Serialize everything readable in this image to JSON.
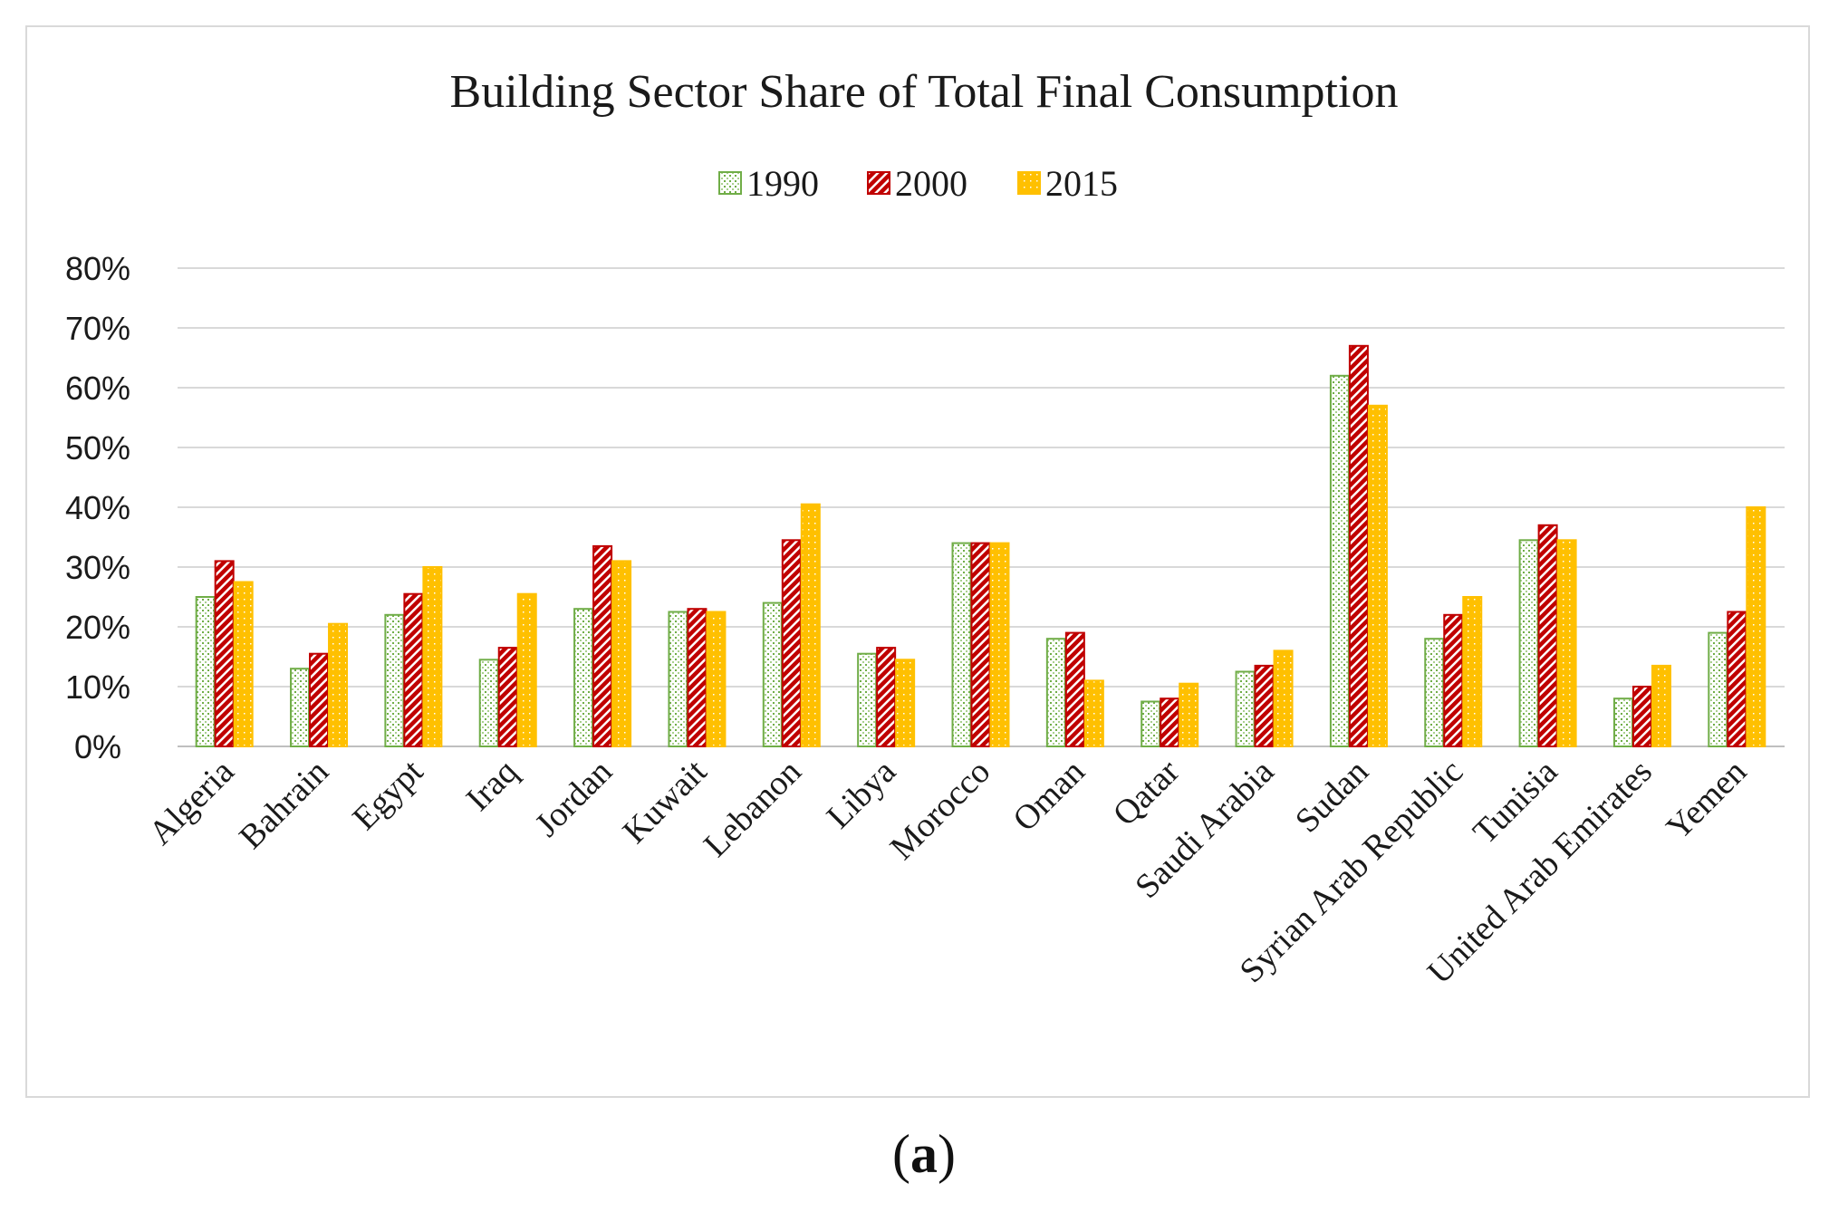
{
  "chart_data": {
    "type": "bar",
    "title": "Building Sector Share of Total Final Consumption",
    "xlabel": "",
    "ylabel": "",
    "ylim": [
      0,
      80
    ],
    "yticks": [
      "0%",
      "10%",
      "20%",
      "30%",
      "40%",
      "50%",
      "60%",
      "70%",
      "80%"
    ],
    "grid": true,
    "legend_position": "top-center",
    "categories": [
      "Algeria",
      "Bahrain",
      "Egypt",
      "Iraq",
      "Jordan",
      "Kuwait",
      "Lebanon",
      "Libya",
      "Morocco",
      "Oman",
      "Qatar",
      "Saudi Arabia",
      "Sudan",
      "Syrian Arab Republic",
      "Tunisia",
      "United Arab Emirates",
      "Yemen"
    ],
    "series": [
      {
        "name": "1990",
        "color": "#70ad47",
        "values": [
          25,
          13,
          22,
          14.5,
          23,
          22.5,
          24,
          15.5,
          34,
          18,
          7.5,
          12.5,
          62,
          18,
          34.5,
          8,
          19
        ]
      },
      {
        "name": "2000",
        "color": "#c00000",
        "values": [
          31,
          15.5,
          25.5,
          16.5,
          33.5,
          23,
          34.5,
          16.5,
          34,
          19,
          8,
          13.5,
          67,
          22,
          37,
          10,
          22.5
        ]
      },
      {
        "name": "2015",
        "color": "#ffc000",
        "values": [
          27.5,
          20.5,
          30,
          25.5,
          31,
          22.5,
          40.5,
          14.5,
          34,
          11,
          10.5,
          16,
          57,
          25,
          34.5,
          13.5,
          40
        ]
      }
    ]
  },
  "caption": {
    "open": "(",
    "letter": "a",
    "close": ")"
  }
}
